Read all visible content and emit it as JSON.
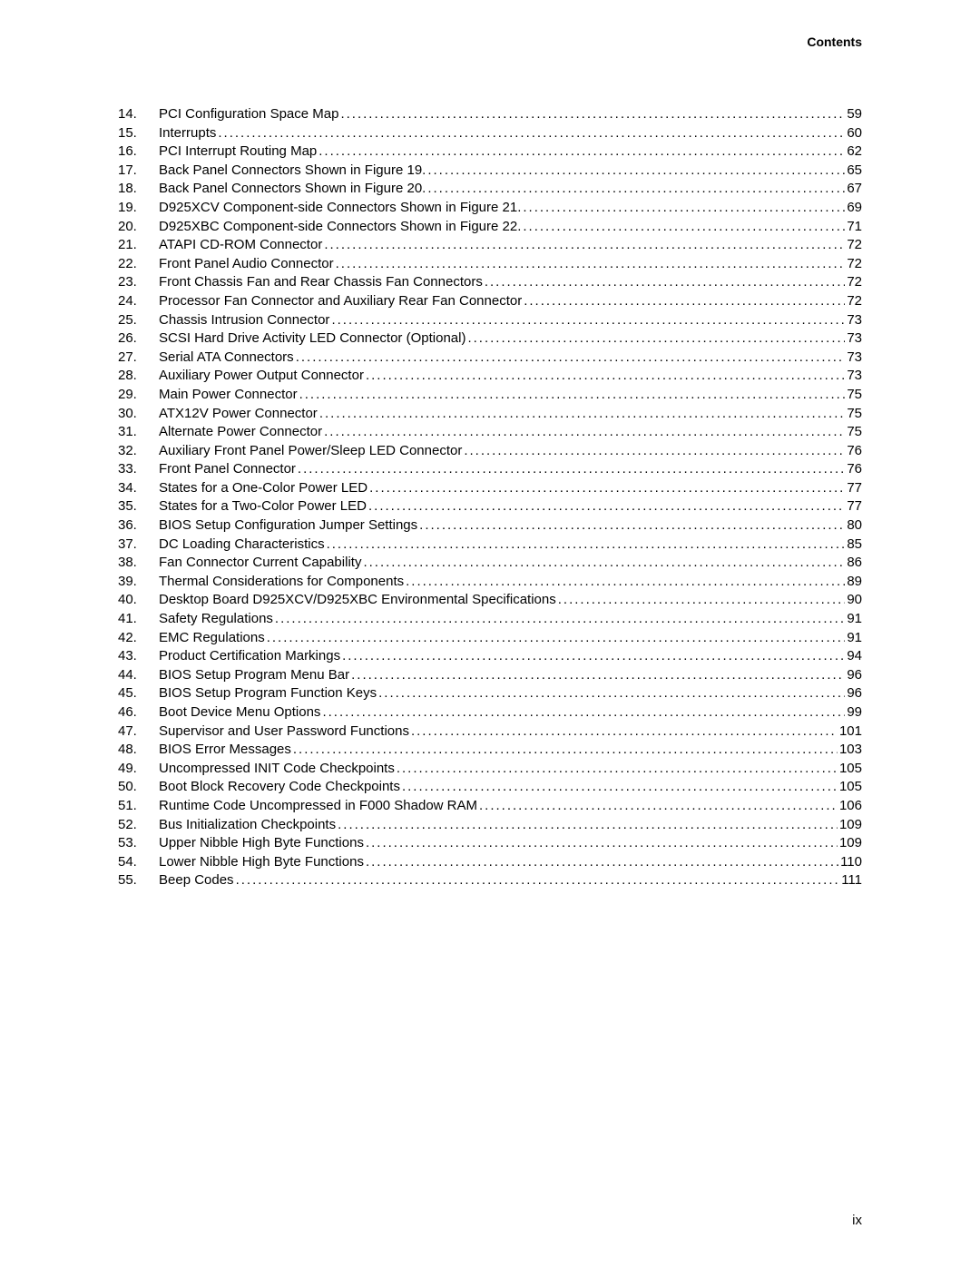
{
  "header": {
    "label": "Contents"
  },
  "footer": {
    "page_number": "ix"
  },
  "toc": {
    "entries": [
      {
        "num": "14.",
        "title": "PCI Configuration Space Map",
        "page": "59"
      },
      {
        "num": "15.",
        "title": "Interrupts",
        "page": "60"
      },
      {
        "num": "16.",
        "title": "PCI Interrupt Routing Map ",
        "page": "62"
      },
      {
        "num": "17.",
        "title": "Back Panel Connectors Shown in Figure 19.",
        "page": "65"
      },
      {
        "num": "18.",
        "title": "Back Panel Connectors Shown in Figure 20.",
        "page": "67"
      },
      {
        "num": "19.",
        "title": "D925XCV Component-side Connectors Shown in Figure 21. ",
        "page": "69"
      },
      {
        "num": "20.",
        "title": "D925XBC Component-side Connectors Shown in Figure 22. ",
        "page": "71"
      },
      {
        "num": "21.",
        "title": "ATAPI CD-ROM Connector ",
        "page": "72"
      },
      {
        "num": "22.",
        "title": "Front Panel Audio Connector",
        "page": "72"
      },
      {
        "num": "23.",
        "title": "Front Chassis Fan and Rear Chassis  Fan Connectors",
        "page": "72"
      },
      {
        "num": "24.",
        "title": "Processor Fan Connector and Auxiliary  Rear Fan Connector ",
        "page": "72"
      },
      {
        "num": "25.",
        "title": "Chassis Intrusion Connector ",
        "page": "73"
      },
      {
        "num": "26.",
        "title": "SCSI Hard Drive Activity LED Connector (Optional) ",
        "page": "73"
      },
      {
        "num": "27.",
        "title": "Serial ATA Connectors",
        "page": "73"
      },
      {
        "num": "28.",
        "title": "Auxiliary Power Output Connector ",
        "page": "73"
      },
      {
        "num": "29.",
        "title": "Main Power Connector",
        "page": "75"
      },
      {
        "num": "30.",
        "title": "ATX12V Power Connector ",
        "page": "75"
      },
      {
        "num": "31.",
        "title": "Alternate Power Connector ",
        "page": "75"
      },
      {
        "num": "32.",
        "title": "Auxiliary Front Panel Power/Sleep LED Connector ",
        "page": "76"
      },
      {
        "num": "33.",
        "title": "Front Panel Connector ",
        "page": "76"
      },
      {
        "num": "34.",
        "title": "States for a One-Color Power LED ",
        "page": "77"
      },
      {
        "num": "35.",
        "title": "States for a Two-Color Power LED ",
        "page": "77"
      },
      {
        "num": "36.",
        "title": "BIOS Setup Configuration Jumper Settings",
        "page": "80"
      },
      {
        "num": "37.",
        "title": "DC Loading Characteristics ",
        "page": "85"
      },
      {
        "num": "38.",
        "title": "Fan Connector Current Capability",
        "page": "86"
      },
      {
        "num": "39.",
        "title": "Thermal Considerations for Components ",
        "page": "89"
      },
      {
        "num": "40.",
        "title": "Desktop Board D925XCV/D925XBC Environmental Specifications ",
        "page": "90"
      },
      {
        "num": "41.",
        "title": "Safety Regulations",
        "page": "91"
      },
      {
        "num": "42.",
        "title": "EMC Regulations ",
        "page": "91"
      },
      {
        "num": "43.",
        "title": "Product Certification Markings ",
        "page": "94"
      },
      {
        "num": "44.",
        "title": "BIOS Setup Program Menu Bar",
        "page": "96"
      },
      {
        "num": "45.",
        "title": "BIOS Setup Program Function Keys",
        "page": "96"
      },
      {
        "num": "46.",
        "title": "Boot Device Menu Options ",
        "page": "99"
      },
      {
        "num": "47.",
        "title": "Supervisor and User Password Functions ",
        "page": "101"
      },
      {
        "num": "48.",
        "title": "BIOS Error Messages ",
        "page": "103"
      },
      {
        "num": "49.",
        "title": "Uncompressed INIT Code Checkpoints",
        "page": "105"
      },
      {
        "num": "50.",
        "title": "Boot Block Recovery Code Checkpoints ",
        "page": "105"
      },
      {
        "num": "51.",
        "title": "Runtime Code Uncompressed in F000 Shadow RAM ",
        "page": "106"
      },
      {
        "num": "52.",
        "title": "Bus Initialization Checkpoints ",
        "page": "109"
      },
      {
        "num": "53.",
        "title": "Upper Nibble High Byte Functions ",
        "page": "109"
      },
      {
        "num": "54.",
        "title": "Lower Nibble High Byte Functions ",
        "page": "110"
      },
      {
        "num": "55.",
        "title": "Beep Codes ",
        "page": "111"
      }
    ]
  }
}
